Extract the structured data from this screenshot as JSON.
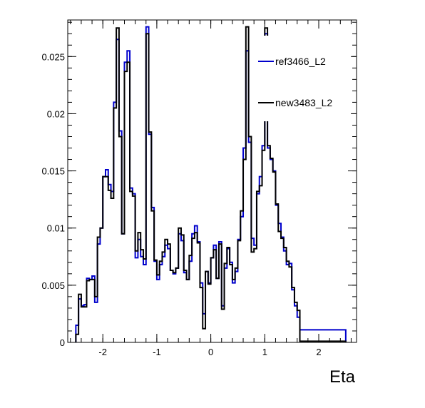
{
  "chart_data": {
    "type": "line",
    "style": "step-histogram",
    "xlabel": "Eta",
    "ylabel": "",
    "title": "",
    "xlim": [
      -2.65,
      2.7
    ],
    "ylim": [
      0,
      0.0282
    ],
    "grid": false,
    "legend_position": "top-right",
    "x_ticks": [
      -2,
      -1,
      0,
      1,
      2
    ],
    "x_tick_labels": [
      "-2",
      "-1",
      "0",
      "1",
      "2"
    ],
    "y_ticks": [
      0,
      0.005,
      0.01,
      0.015,
      0.02,
      0.025
    ],
    "y_tick_labels": [
      "0",
      "0.005",
      "0.01",
      "0.015",
      "0.02",
      "0.025"
    ],
    "bin_edges": [
      -2.5,
      -2.45,
      -2.4,
      -2.35,
      -2.3,
      -2.25,
      -2.2,
      -2.15,
      -2.1,
      -2.05,
      -2.0,
      -1.95,
      -1.9,
      -1.85,
      -1.8,
      -1.75,
      -1.7,
      -1.65,
      -1.6,
      -1.55,
      -1.5,
      -1.45,
      -1.4,
      -1.35,
      -1.3,
      -1.25,
      -1.2,
      -1.15,
      -1.1,
      -1.05,
      -1.0,
      -0.95,
      -0.9,
      -0.85,
      -0.8,
      -0.75,
      -0.7,
      -0.65,
      -0.6,
      -0.55,
      -0.5,
      -0.45,
      -0.4,
      -0.35,
      -0.3,
      -0.25,
      -0.2,
      -0.15,
      -0.1,
      -0.05,
      0.0,
      0.05,
      0.1,
      0.15,
      0.2,
      0.25,
      0.3,
      0.35,
      0.4,
      0.45,
      0.5,
      0.55,
      0.6,
      0.65,
      0.7,
      0.75,
      0.8,
      0.85,
      0.9,
      0.95,
      1.0,
      1.05,
      1.1,
      1.15,
      1.2,
      1.25,
      1.3,
      1.35,
      1.4,
      1.45,
      1.5,
      1.55,
      1.6,
      1.65,
      1.7,
      1.75,
      1.8,
      1.85,
      1.9,
      1.95,
      2.0,
      2.05,
      2.1,
      2.15,
      2.2,
      2.25,
      2.3,
      2.35,
      2.4,
      2.45,
      2.5
    ],
    "series": [
      {
        "name": "ref3466_L2",
        "color": "#0000cc",
        "values": [
          0.0015,
          0.0038,
          0.0032,
          0.0033,
          0.0056,
          0.0055,
          0.0058,
          0.0035,
          0.0086,
          0.01,
          0.0145,
          0.0151,
          0.0138,
          0.0132,
          0.021,
          0.0265,
          0.0185,
          0.0095,
          0.0245,
          0.0255,
          0.0135,
          0.013,
          0.0074,
          0.009,
          0.0075,
          0.0068,
          0.0276,
          0.0182,
          0.0118,
          0.0071,
          0.0055,
          0.0068,
          0.0075,
          0.0085,
          0.0082,
          0.0063,
          0.006,
          0.0065,
          0.0095,
          0.0089,
          0.0061,
          0.0055,
          0.0071,
          0.0095,
          0.0102,
          0.0088,
          0.0052,
          0.0025,
          0.0062,
          0.0052,
          0.0074,
          0.0085,
          0.0056,
          0.0088,
          0.0032,
          0.0065,
          0.0082,
          0.007,
          0.0052,
          0.0062,
          0.009,
          0.011,
          0.017,
          0.0255,
          0.0175,
          0.0091,
          0.0085,
          0.013,
          0.0145,
          0.0172,
          0.027,
          0.017,
          0.016,
          0.015,
          0.012,
          0.0104,
          0.0092,
          0.008,
          0.0068,
          0.0069,
          0.0046,
          0.0032,
          0.0022,
          0.0011,
          0.0011,
          0.0011,
          0.0011,
          0.0011,
          0.0011,
          0.0011,
          0.0011,
          0.0011,
          0.0011,
          0.0011,
          0.0011,
          0.0011,
          0.0011,
          0.0011,
          0.0011,
          0.0011,
          0.0011
        ]
      },
      {
        "name": "new3483_L2",
        "color": "#000000",
        "values": [
          0.0007,
          0.0042,
          0.0031,
          0.0031,
          0.0054,
          0.0055,
          0.0055,
          0.004,
          0.0092,
          0.01,
          0.0145,
          0.0145,
          0.0133,
          0.0126,
          0.0205,
          0.0275,
          0.018,
          0.0095,
          0.0237,
          0.0245,
          0.0132,
          0.0128,
          0.008,
          0.0096,
          0.0081,
          0.0073,
          0.027,
          0.0184,
          0.0115,
          0.0072,
          0.0059,
          0.0071,
          0.0079,
          0.009,
          0.0086,
          0.0063,
          0.0061,
          0.0065,
          0.01,
          0.0094,
          0.0063,
          0.0055,
          0.0076,
          0.0091,
          0.0096,
          0.0087,
          0.0048,
          0.0012,
          0.0062,
          0.0051,
          0.0074,
          0.0081,
          0.0056,
          0.0086,
          0.0029,
          0.0069,
          0.0083,
          0.0068,
          0.0055,
          0.0065,
          0.0089,
          0.0115,
          0.016,
          0.0276,
          0.018,
          0.0079,
          0.0082,
          0.0132,
          0.0137,
          0.0168,
          0.0275,
          0.0172,
          0.0161,
          0.0149,
          0.0121,
          0.0097,
          0.0091,
          0.0083,
          0.0071,
          0.0066,
          0.0048,
          0.0035,
          0.0028,
          0.0001,
          0.0001,
          0.0001,
          0.0001,
          0.0001,
          0.0001,
          0.0001,
          0.0001,
          0.0001,
          0.0001,
          0.0001,
          0.0001,
          0.0001,
          0.0001,
          0.0001,
          0.0001,
          0.0001,
          0.0001
        ]
      }
    ]
  }
}
